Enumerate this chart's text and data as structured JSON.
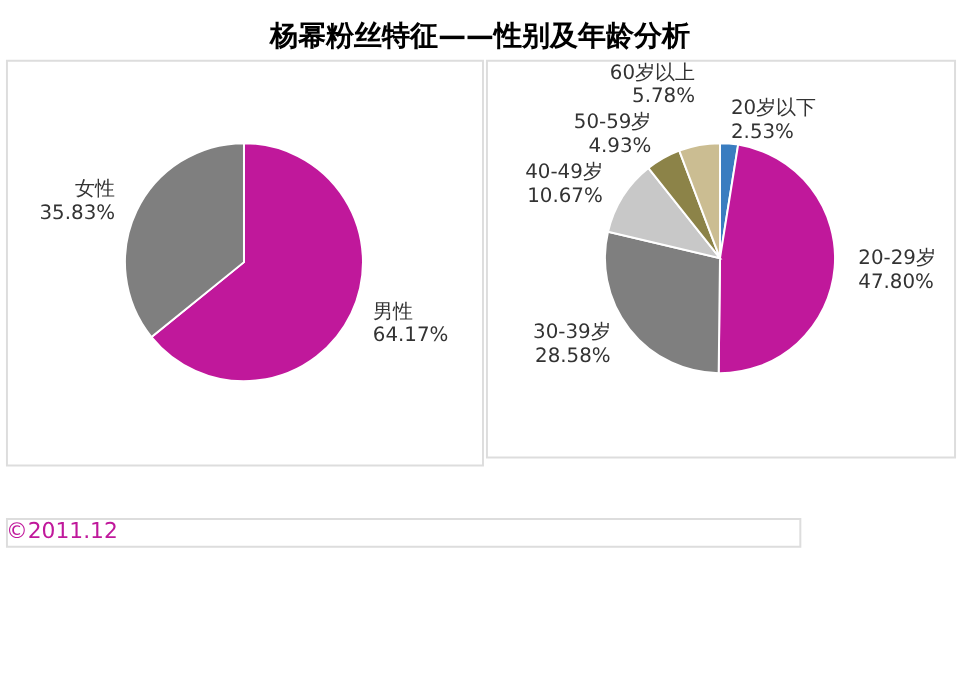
{
  "chart_data": [
    {
      "type": "pie",
      "title": "杨幂粉丝特征——性别及年龄分析",
      "categories": [
        "男性",
        "女性"
      ],
      "values": [
        64.17,
        35.83
      ],
      "colors": [
        "#c0189b",
        "#7f7f7f"
      ],
      "value_labels": [
        "64.17%",
        "35.83%"
      ],
      "annotations": [
        "©2011.12"
      ]
    },
    {
      "type": "pie",
      "categories": [
        "20岁以下",
        "20-29岁",
        "30-39岁",
        "40-49岁",
        "50-59岁",
        "60岁以上"
      ],
      "values": [
        2.53,
        47.8,
        28.58,
        10.67,
        4.93,
        5.78
      ],
      "colors": [
        "#3a7dc0",
        "#c0189b",
        "#7f7f7f",
        "#c8c8c8",
        "#8c8348",
        "#cbbd92"
      ],
      "value_labels": [
        "2.53%",
        "47.80%",
        "28.58%",
        "10.67%",
        "4.93%",
        "5.78%"
      ]
    }
  ]
}
